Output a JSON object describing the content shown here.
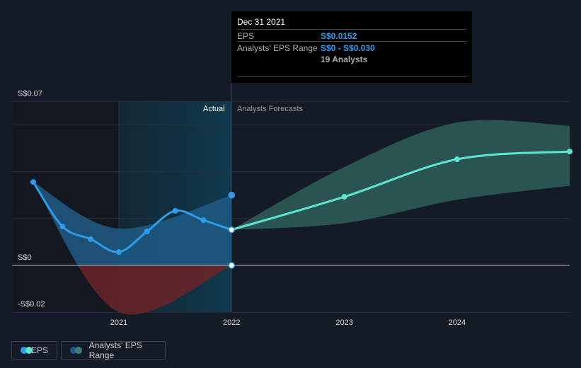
{
  "tooltip": {
    "date": "Dec 31 2021",
    "eps_label": "EPS",
    "eps_value": "S$0.0152",
    "range_label": "Analysts' EPS Range",
    "range_value": "S$0 - S$0.030",
    "analysts": "19 Analysts"
  },
  "labels": {
    "actual": "Actual",
    "forecast": "Analysts Forecasts"
  },
  "legend": [
    {
      "label": "EPS"
    },
    {
      "label": "Analysts' EPS Range"
    }
  ],
  "colors": {
    "eps_actual": "#2f9be8",
    "eps_forecast": "#5ce6d2",
    "range_actual": "#1e5a85",
    "range_forecast": "#2e5e5a",
    "negative": "#6b2528"
  },
  "chart_data": {
    "type": "line",
    "ylabel": "",
    "xlabel": "",
    "ylim": [
      -0.02,
      0.07
    ],
    "xlim": [
      2020.05,
      2024.99
    ],
    "y_ticks": [
      {
        "v": 0.07,
        "label": "S$0.07"
      },
      {
        "v": 0,
        "label": "S$0"
      },
      {
        "v": -0.02,
        "label": "-S$0.02"
      }
    ],
    "x_ticks": [
      {
        "v": 2021,
        "label": "2021"
      },
      {
        "v": 2022,
        "label": "2022"
      },
      {
        "v": 2023,
        "label": "2023"
      },
      {
        "v": 2024,
        "label": "2024"
      }
    ],
    "eps_actual": [
      [
        2020.24,
        0.0356
      ],
      [
        2020.5,
        0.0166
      ],
      [
        2020.75,
        0.0112
      ],
      [
        2021.0,
        0.0057
      ],
      [
        2021.25,
        0.0145
      ],
      [
        2021.5,
        0.0233
      ],
      [
        2021.75,
        0.0193
      ],
      [
        2022.0,
        0.0152
      ]
    ],
    "eps_forecast": [
      [
        2022.0,
        0.0152
      ],
      [
        2023.0,
        0.0293
      ],
      [
        2024.0,
        0.0453
      ],
      [
        2025.0,
        0.0486
      ]
    ],
    "range_actual_upper": [
      [
        2020.24,
        0.0356
      ],
      [
        2021.0,
        0.0157
      ],
      [
        2022.0,
        0.03
      ]
    ],
    "range_actual_lower": [
      [
        2020.24,
        0.0356
      ],
      [
        2021.0,
        -0.02
      ],
      [
        2022.0,
        0
      ]
    ],
    "range_forecast_upper": [
      [
        2022.0,
        0.0152
      ],
      [
        2023.0,
        0.042
      ],
      [
        2024.0,
        0.061
      ],
      [
        2025.0,
        0.0595
      ]
    ],
    "range_forecast_lower": [
      [
        2022.0,
        0.0152
      ],
      [
        2023.0,
        0.018
      ],
      [
        2024.0,
        0.028
      ],
      [
        2025.0,
        0.034
      ]
    ],
    "markers_extra": [
      [
        2022.0,
        0.03
      ],
      [
        2022.0,
        0
      ]
    ]
  }
}
